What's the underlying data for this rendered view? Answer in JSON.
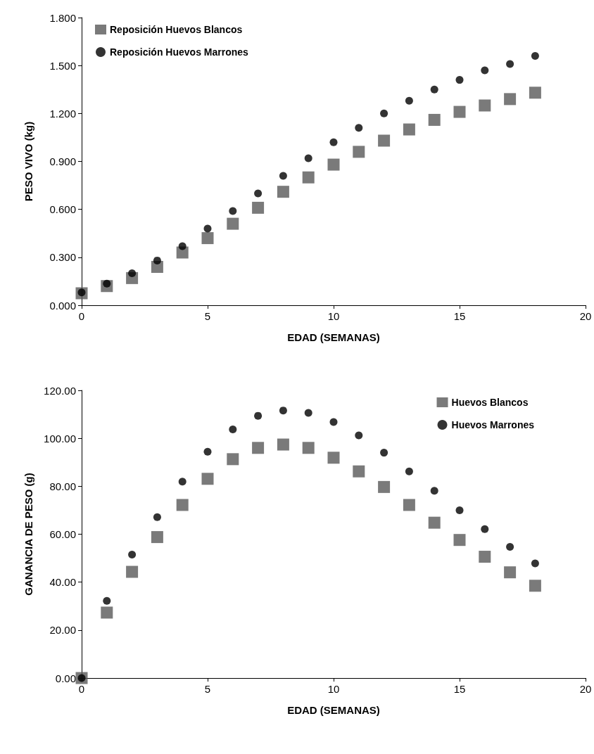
{
  "chart_data": [
    {
      "type": "scatter",
      "xlabel": "EDAD (SEMANAS)",
      "ylabel": "PESO VIVO (kg)",
      "x": [
        0,
        1,
        2,
        3,
        4,
        5,
        6,
        7,
        8,
        9,
        10,
        11,
        12,
        13,
        14,
        15,
        16,
        17,
        18
      ],
      "series": [
        {
          "name": "Reposición Huevos Blancos",
          "color": "#595959",
          "marker": "square",
          "values": [
            0.075,
            0.12,
            0.17,
            0.24,
            0.33,
            0.42,
            0.51,
            0.61,
            0.71,
            0.8,
            0.88,
            0.96,
            1.03,
            1.1,
            1.16,
            1.21,
            1.25,
            1.29,
            1.33
          ]
        },
        {
          "name": "Reposición Huevos Marrones",
          "color": "#000000",
          "marker": "circle",
          "values": [
            0.08,
            0.135,
            0.2,
            0.28,
            0.37,
            0.48,
            0.59,
            0.7,
            0.81,
            0.92,
            1.02,
            1.11,
            1.2,
            1.28,
            1.35,
            1.41,
            1.47,
            1.51,
            1.56
          ]
        }
      ],
      "xlim": [
        0,
        20
      ],
      "xticks": [
        0,
        5,
        10,
        15,
        20
      ],
      "ylim": [
        0,
        1.8
      ],
      "yticks": [
        {
          "value": 0,
          "label": "0.000"
        },
        {
          "value": 0.3,
          "label": "0.300"
        },
        {
          "value": 0.6,
          "label": "0.600"
        },
        {
          "value": 0.9,
          "label": "0.900"
        },
        {
          "value": 1.2,
          "label": "1.200"
        },
        {
          "value": 1.5,
          "label": "1.500"
        },
        {
          "value": 1.8,
          "label": "1.800"
        }
      ],
      "grid": false,
      "legend": "top left"
    },
    {
      "type": "scatter",
      "xlabel": "EDAD (SEMANAS)",
      "ylabel": "GANANCIA DE PESO (g)",
      "x": [
        0,
        1,
        2,
        3,
        4,
        5,
        6,
        7,
        8,
        9,
        10,
        11,
        12,
        13,
        14,
        15,
        16,
        17,
        18
      ],
      "series": [
        {
          "name": "Huevos Blancos",
          "color": "#595959",
          "marker": "square",
          "values": [
            0,
            27.3,
            44.3,
            58.8,
            72.2,
            83.1,
            91.3,
            96.0,
            97.4,
            96.0,
            91.9,
            86.2,
            79.7,
            72.2,
            64.8,
            57.6,
            50.6,
            44.1,
            38.5
          ]
        },
        {
          "name": "Huevos Marrones",
          "color": "#000000",
          "marker": "circle",
          "values": [
            0,
            32.2,
            51.5,
            67.1,
            81.9,
            94.4,
            103.7,
            109.4,
            111.6,
            110.6,
            106.8,
            101.2,
            94.0,
            86.2,
            78.1,
            70.0,
            62.1,
            54.7,
            47.8
          ]
        }
      ],
      "xlim": [
        0,
        20
      ],
      "xticks": [
        0,
        5,
        10,
        15,
        20
      ],
      "ylim": [
        0,
        120
      ],
      "yticks": [
        {
          "value": 0,
          "label": "0.00"
        },
        {
          "value": 20,
          "label": "20.00"
        },
        {
          "value": 40,
          "label": "40.00"
        },
        {
          "value": 60,
          "label": "60.00"
        },
        {
          "value": 80,
          "label": "80.00"
        },
        {
          "value": 100,
          "label": "100.00"
        },
        {
          "value": 120,
          "label": "120.00"
        }
      ],
      "grid": false,
      "legend": "top right"
    }
  ]
}
